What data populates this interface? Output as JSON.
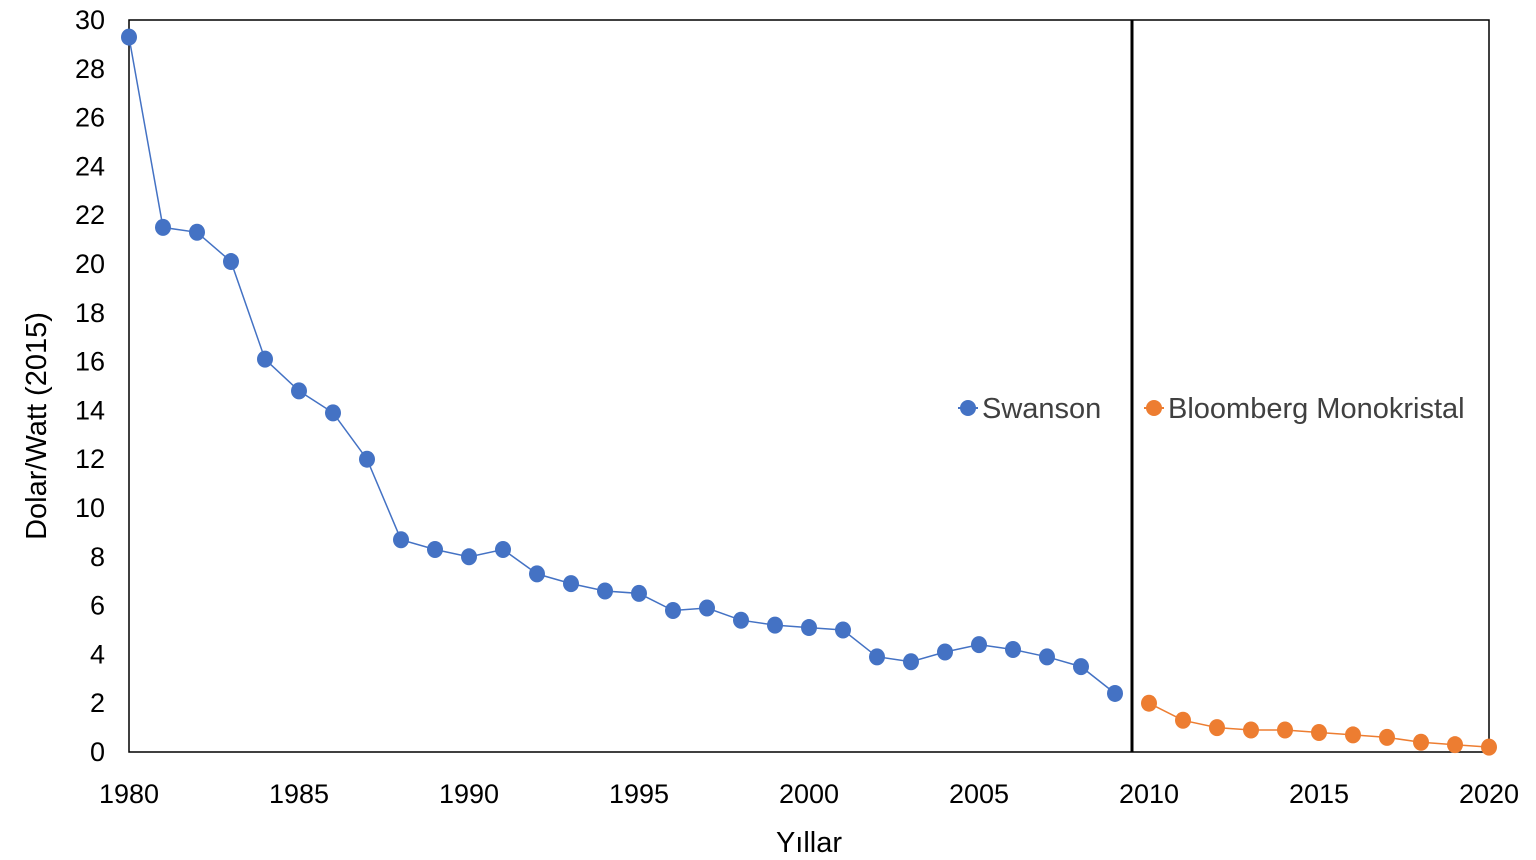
{
  "chart_data": {
    "type": "line",
    "xlabel": "Yıllar",
    "ylabel": "Dolar/Watt (2015)",
    "xlim": [
      1980,
      2020
    ],
    "ylim": [
      0,
      30
    ],
    "x_ticks": [
      "1980",
      "1985",
      "1990",
      "1995",
      "2000",
      "2005",
      "2010",
      "2015",
      "2020"
    ],
    "y_ticks": [
      "0",
      "2",
      "4",
      "6",
      "8",
      "10",
      "12",
      "14",
      "16",
      "18",
      "20",
      "22",
      "24",
      "26",
      "28",
      "30"
    ],
    "grid": false,
    "legend_position": "center-right",
    "divider_x": 2009.5,
    "series": [
      {
        "name": "Swanson",
        "color": "#4472C4",
        "x": [
          1980,
          1981,
          1982,
          1983,
          1984,
          1985,
          1986,
          1987,
          1988,
          1989,
          1990,
          1991,
          1992,
          1993,
          1994,
          1995,
          1996,
          1997,
          1998,
          1999,
          2000,
          2001,
          2002,
          2003,
          2004,
          2005,
          2006,
          2007,
          2008,
          2009
        ],
        "values": [
          29.3,
          21.5,
          21.3,
          20.1,
          16.1,
          14.8,
          13.9,
          12.0,
          8.7,
          8.3,
          8.0,
          8.3,
          7.3,
          6.9,
          6.6,
          6.5,
          5.8,
          5.9,
          5.4,
          5.2,
          5.1,
          5.0,
          3.9,
          3.7,
          4.1,
          4.4,
          4.2,
          3.9,
          3.5,
          2.4
        ]
      },
      {
        "name": "Bloomberg Monokristal",
        "color": "#ED7D31",
        "x": [
          2010,
          2011,
          2012,
          2013,
          2014,
          2015,
          2016,
          2017,
          2018,
          2019,
          2020
        ],
        "values": [
          2.0,
          1.3,
          1.0,
          0.9,
          0.9,
          0.8,
          0.7,
          0.6,
          0.4,
          0.3,
          0.2
        ]
      }
    ]
  }
}
